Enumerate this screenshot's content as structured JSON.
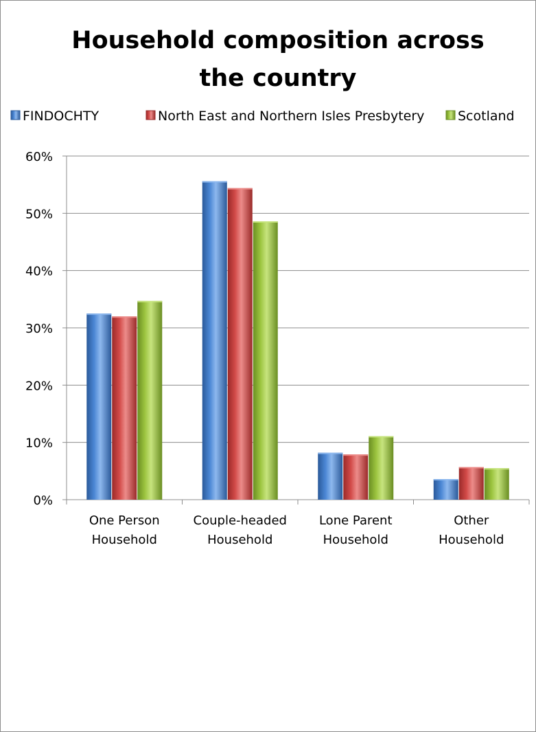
{
  "chart_data": {
    "type": "bar",
    "title_lines": [
      "Household composition across",
      "the country"
    ],
    "categories": [
      [
        "One Person",
        "Household"
      ],
      [
        "Couple-headed",
        "Household"
      ],
      [
        "Lone Parent",
        "Household"
      ],
      [
        "Other",
        "Household"
      ]
    ],
    "series": [
      {
        "name": "FINDOCHTY",
        "values": [
          32.5,
          55.6,
          8.2,
          3.6
        ],
        "color": "#4a86d4",
        "dark": "#2b5a9a",
        "light": "#8db8ee"
      },
      {
        "name": "North East and Northern Isles Presbytery",
        "values": [
          32.0,
          54.4,
          7.9,
          5.7
        ],
        "color": "#d24a48",
        "dark": "#9a2a29",
        "light": "#ec8c8a"
      },
      {
        "name": "Scotland",
        "values": [
          34.7,
          48.6,
          11.1,
          5.5
        ],
        "color": "#9cc43f",
        "dark": "#6a8e22",
        "light": "#c7e47e"
      }
    ],
    "yticks": [
      "0%",
      "10%",
      "20%",
      "30%",
      "40%",
      "50%",
      "60%"
    ],
    "ylim": [
      0,
      60
    ],
    "grid": true,
    "legend_position": "top"
  }
}
